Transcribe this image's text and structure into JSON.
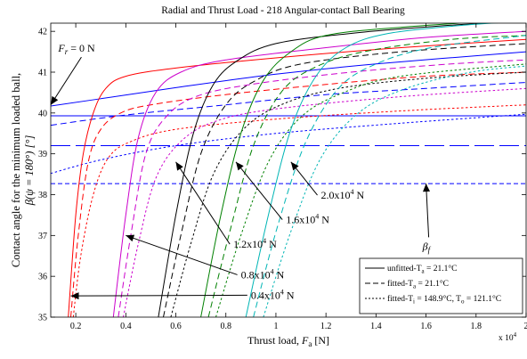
{
  "chart_data": {
    "type": "line",
    "title": "Radial and Thrust Load - 218 Angular-contact Ball Bearing",
    "xlabel": {
      "text": "Thrust load, ",
      "var": "F",
      "sub": "a",
      "unit": " [N]"
    },
    "ylabel": {
      "line1": "Contact angle for the minimum loaded ball,",
      "line2": "β(ψ = 180°)  [°]"
    },
    "x_multiplier": {
      "base": "x 10",
      "exp": "4"
    },
    "xlim": [
      0.1,
      2.0
    ],
    "ylim": [
      35,
      42.2
    ],
    "x_ticks": [
      0.2,
      0.4,
      0.6,
      0.8,
      1.0,
      1.2,
      1.4,
      1.6,
      1.8,
      2.0
    ],
    "x_tick_labels": [
      "0.2",
      "0.4",
      "0.6",
      "0.8",
      "1",
      "1.2",
      "1.4",
      "1.6",
      "1.8",
      "2"
    ],
    "y_ticks": [
      35,
      36,
      37,
      38,
      39,
      40,
      41,
      42
    ],
    "y_tick_labels": [
      "35",
      "36",
      "37",
      "38",
      "39",
      "40",
      "41",
      "42"
    ],
    "grid": false,
    "legend_position": "bottom-right",
    "legend": [
      {
        "style": "solid",
        "text": "unfitted-T",
        "sub": "a",
        "rest": " = 21.1°C"
      },
      {
        "style": "dashed",
        "text": "fitted-T",
        "sub": "a",
        "rest": " = 21.1°C"
      },
      {
        "style": "dotted",
        "text": "fitted-T",
        "sub": "i",
        "rest": " = 148.9°C, T",
        "sub2": "o",
        "rest2": " = 121.1°C"
      }
    ],
    "series": [
      {
        "group": "0",
        "color": "#0000ff",
        "style": "solid",
        "x": [
          0.1,
          0.3,
          0.6,
          1.0,
          1.4,
          2.0
        ],
        "y": [
          40.17,
          40.35,
          40.62,
          40.95,
          41.2,
          41.5
        ]
      },
      {
        "group": "0",
        "color": "#0000ff",
        "style": "dashed",
        "x": [
          0.1,
          0.4,
          0.8,
          1.2,
          1.6,
          2.0
        ],
        "y": [
          39.7,
          39.95,
          40.2,
          40.45,
          40.6,
          40.75
        ]
      },
      {
        "group": "0",
        "color": "#0000ff",
        "style": "dotted",
        "x": [
          0.1,
          0.3,
          0.6,
          1.0,
          1.5,
          2.0
        ],
        "y": [
          38.52,
          38.85,
          39.2,
          39.5,
          39.75,
          39.97
        ]
      },
      {
        "group": "0.4",
        "color": "#ff0000",
        "style": "solid",
        "x": [
          0.17,
          0.2,
          0.23,
          0.27,
          0.32,
          0.4,
          0.6,
          1.0,
          1.5,
          2.0
        ],
        "y": [
          35.0,
          37.5,
          39.0,
          40.0,
          40.6,
          40.9,
          41.1,
          41.35,
          41.6,
          41.8
        ]
      },
      {
        "group": "0.4",
        "color": "#ff0000",
        "style": "dashed",
        "x": [
          0.18,
          0.21,
          0.25,
          0.3,
          0.38,
          0.5,
          0.8,
          1.2,
          1.6,
          2.0
        ],
        "y": [
          35.0,
          37.0,
          38.8,
          39.6,
          40.0,
          40.2,
          40.45,
          40.7,
          40.9,
          41.0
        ]
      },
      {
        "group": "0.4",
        "color": "#ff0000",
        "style": "dotted",
        "x": [
          0.19,
          0.22,
          0.27,
          0.33,
          0.42,
          0.6,
          1.0,
          1.5,
          2.0
        ],
        "y": [
          35.0,
          36.5,
          38.0,
          38.9,
          39.3,
          39.6,
          39.85,
          40.05,
          40.2
        ]
      },
      {
        "group": "0.8",
        "color": "#cc00cc",
        "style": "solid",
        "x": [
          0.35,
          0.4,
          0.45,
          0.52,
          0.62,
          0.8,
          1.2,
          1.6,
          2.0
        ],
        "y": [
          35.0,
          37.5,
          39.4,
          40.5,
          41.0,
          41.3,
          41.6,
          41.85,
          42.0
        ]
      },
      {
        "group": "0.8",
        "color": "#cc00cc",
        "style": "dashed",
        "x": [
          0.37,
          0.42,
          0.48,
          0.56,
          0.68,
          0.9,
          1.3,
          1.7,
          2.0
        ],
        "y": [
          35.0,
          37.0,
          39.0,
          39.9,
          40.4,
          40.7,
          41.0,
          41.2,
          41.3
        ]
      },
      {
        "group": "0.8",
        "color": "#cc00cc",
        "style": "dotted",
        "x": [
          0.39,
          0.45,
          0.52,
          0.62,
          0.76,
          1.0,
          1.5,
          2.0
        ],
        "y": [
          35.0,
          36.8,
          38.4,
          39.3,
          39.8,
          40.1,
          40.4,
          40.6
        ]
      },
      {
        "group": "1.2",
        "color": "#000000",
        "style": "solid",
        "x": [
          0.53,
          0.6,
          0.67,
          0.75,
          0.85,
          1.0,
          1.3,
          1.7,
          2.0
        ],
        "y": [
          35.0,
          37.5,
          39.5,
          40.7,
          41.3,
          41.7,
          41.95,
          42.15,
          42.25
        ]
      },
      {
        "group": "1.2",
        "color": "#000000",
        "style": "dashed",
        "x": [
          0.55,
          0.62,
          0.7,
          0.8,
          0.92,
          1.1,
          1.5,
          2.0
        ],
        "y": [
          35.0,
          37.0,
          39.0,
          40.2,
          40.8,
          41.2,
          41.5,
          41.7
        ]
      },
      {
        "group": "1.2",
        "color": "#000000",
        "style": "dotted",
        "x": [
          0.58,
          0.66,
          0.75,
          0.87,
          1.02,
          1.25,
          1.6,
          2.0
        ],
        "y": [
          35.0,
          36.8,
          38.5,
          39.6,
          40.2,
          40.6,
          40.85,
          41.0
        ]
      },
      {
        "group": "1.6",
        "color": "#008000",
        "style": "solid",
        "x": [
          0.7,
          0.78,
          0.86,
          0.95,
          1.06,
          1.2,
          1.5,
          2.0
        ],
        "y": [
          35.0,
          37.5,
          39.5,
          40.8,
          41.5,
          41.9,
          42.1,
          42.3
        ]
      },
      {
        "group": "1.6",
        "color": "#008000",
        "style": "dashed",
        "x": [
          0.73,
          0.82,
          0.91,
          1.02,
          1.15,
          1.35,
          1.7,
          2.0
        ],
        "y": [
          35.0,
          37.2,
          39.2,
          40.5,
          41.1,
          41.5,
          41.8,
          41.9
        ]
      },
      {
        "group": "1.6",
        "color": "#008000",
        "style": "dotted",
        "x": [
          0.76,
          0.86,
          0.97,
          1.1,
          1.27,
          1.5,
          2.0
        ],
        "y": [
          35.0,
          37.0,
          38.8,
          39.9,
          40.5,
          40.9,
          41.2
        ]
      },
      {
        "group": "2.0",
        "color": "#00b5b5",
        "style": "solid",
        "x": [
          0.88,
          0.97,
          1.06,
          1.16,
          1.28,
          1.45,
          1.75,
          2.0
        ],
        "y": [
          35.0,
          37.5,
          39.6,
          40.9,
          41.6,
          41.95,
          42.15,
          42.25
        ]
      },
      {
        "group": "2.0",
        "color": "#00b5b5",
        "style": "dashed",
        "x": [
          0.91,
          1.01,
          1.12,
          1.25,
          1.4,
          1.62,
          2.0
        ],
        "y": [
          35.0,
          37.3,
          39.3,
          40.6,
          41.2,
          41.6,
          41.9
        ]
      },
      {
        "group": "2.0",
        "color": "#00b5b5",
        "style": "dotted",
        "x": [
          0.95,
          1.06,
          1.18,
          1.33,
          1.52,
          1.78,
          2.0
        ],
        "y": [
          35.0,
          37.1,
          38.9,
          40.0,
          40.6,
          41.0,
          41.15
        ]
      }
    ],
    "reference_lines": [
      {
        "y": 39.93,
        "color": "#0000ff",
        "style": "solid"
      },
      {
        "y": 39.2,
        "color": "#0000ff",
        "style": "dashed"
      },
      {
        "y": 38.27,
        "color": "#0000ff",
        "style": "dotted"
      }
    ],
    "annotations": [
      {
        "text": "F",
        "sub": "r",
        "rest": " = 0 N",
        "tx": 0.13,
        "ty": 41.5,
        "ax": 0.1,
        "ay": 40.2
      },
      {
        "text": "0.4x10",
        "sup": "4",
        "rest": " N",
        "tx": 0.9,
        "ty": 35.45,
        "ax": 0.18,
        "ay": 35.52
      },
      {
        "text": "0.8x10",
        "sup": "4",
        "rest": " N",
        "tx": 0.86,
        "ty": 35.95,
        "ax": 0.4,
        "ay": 37.0
      },
      {
        "text": "1.2x10",
        "sup": "4",
        "rest": " N",
        "tx": 0.83,
        "ty": 36.7,
        "ax": 0.6,
        "ay": 38.8
      },
      {
        "text": "1.6x10",
        "sup": "4",
        "rest": " N",
        "tx": 1.04,
        "ty": 37.3,
        "ax": 0.84,
        "ay": 38.8
      },
      {
        "text": "2.0x10",
        "sup": "4",
        "rest": " N",
        "tx": 1.18,
        "ty": 37.9,
        "ax": 1.06,
        "ay": 38.8
      },
      {
        "text": "β",
        "sub": "f",
        "rest": "",
        "tx": 1.6,
        "ty": 36.65,
        "ax": 1.6,
        "ay": 38.27
      }
    ]
  }
}
